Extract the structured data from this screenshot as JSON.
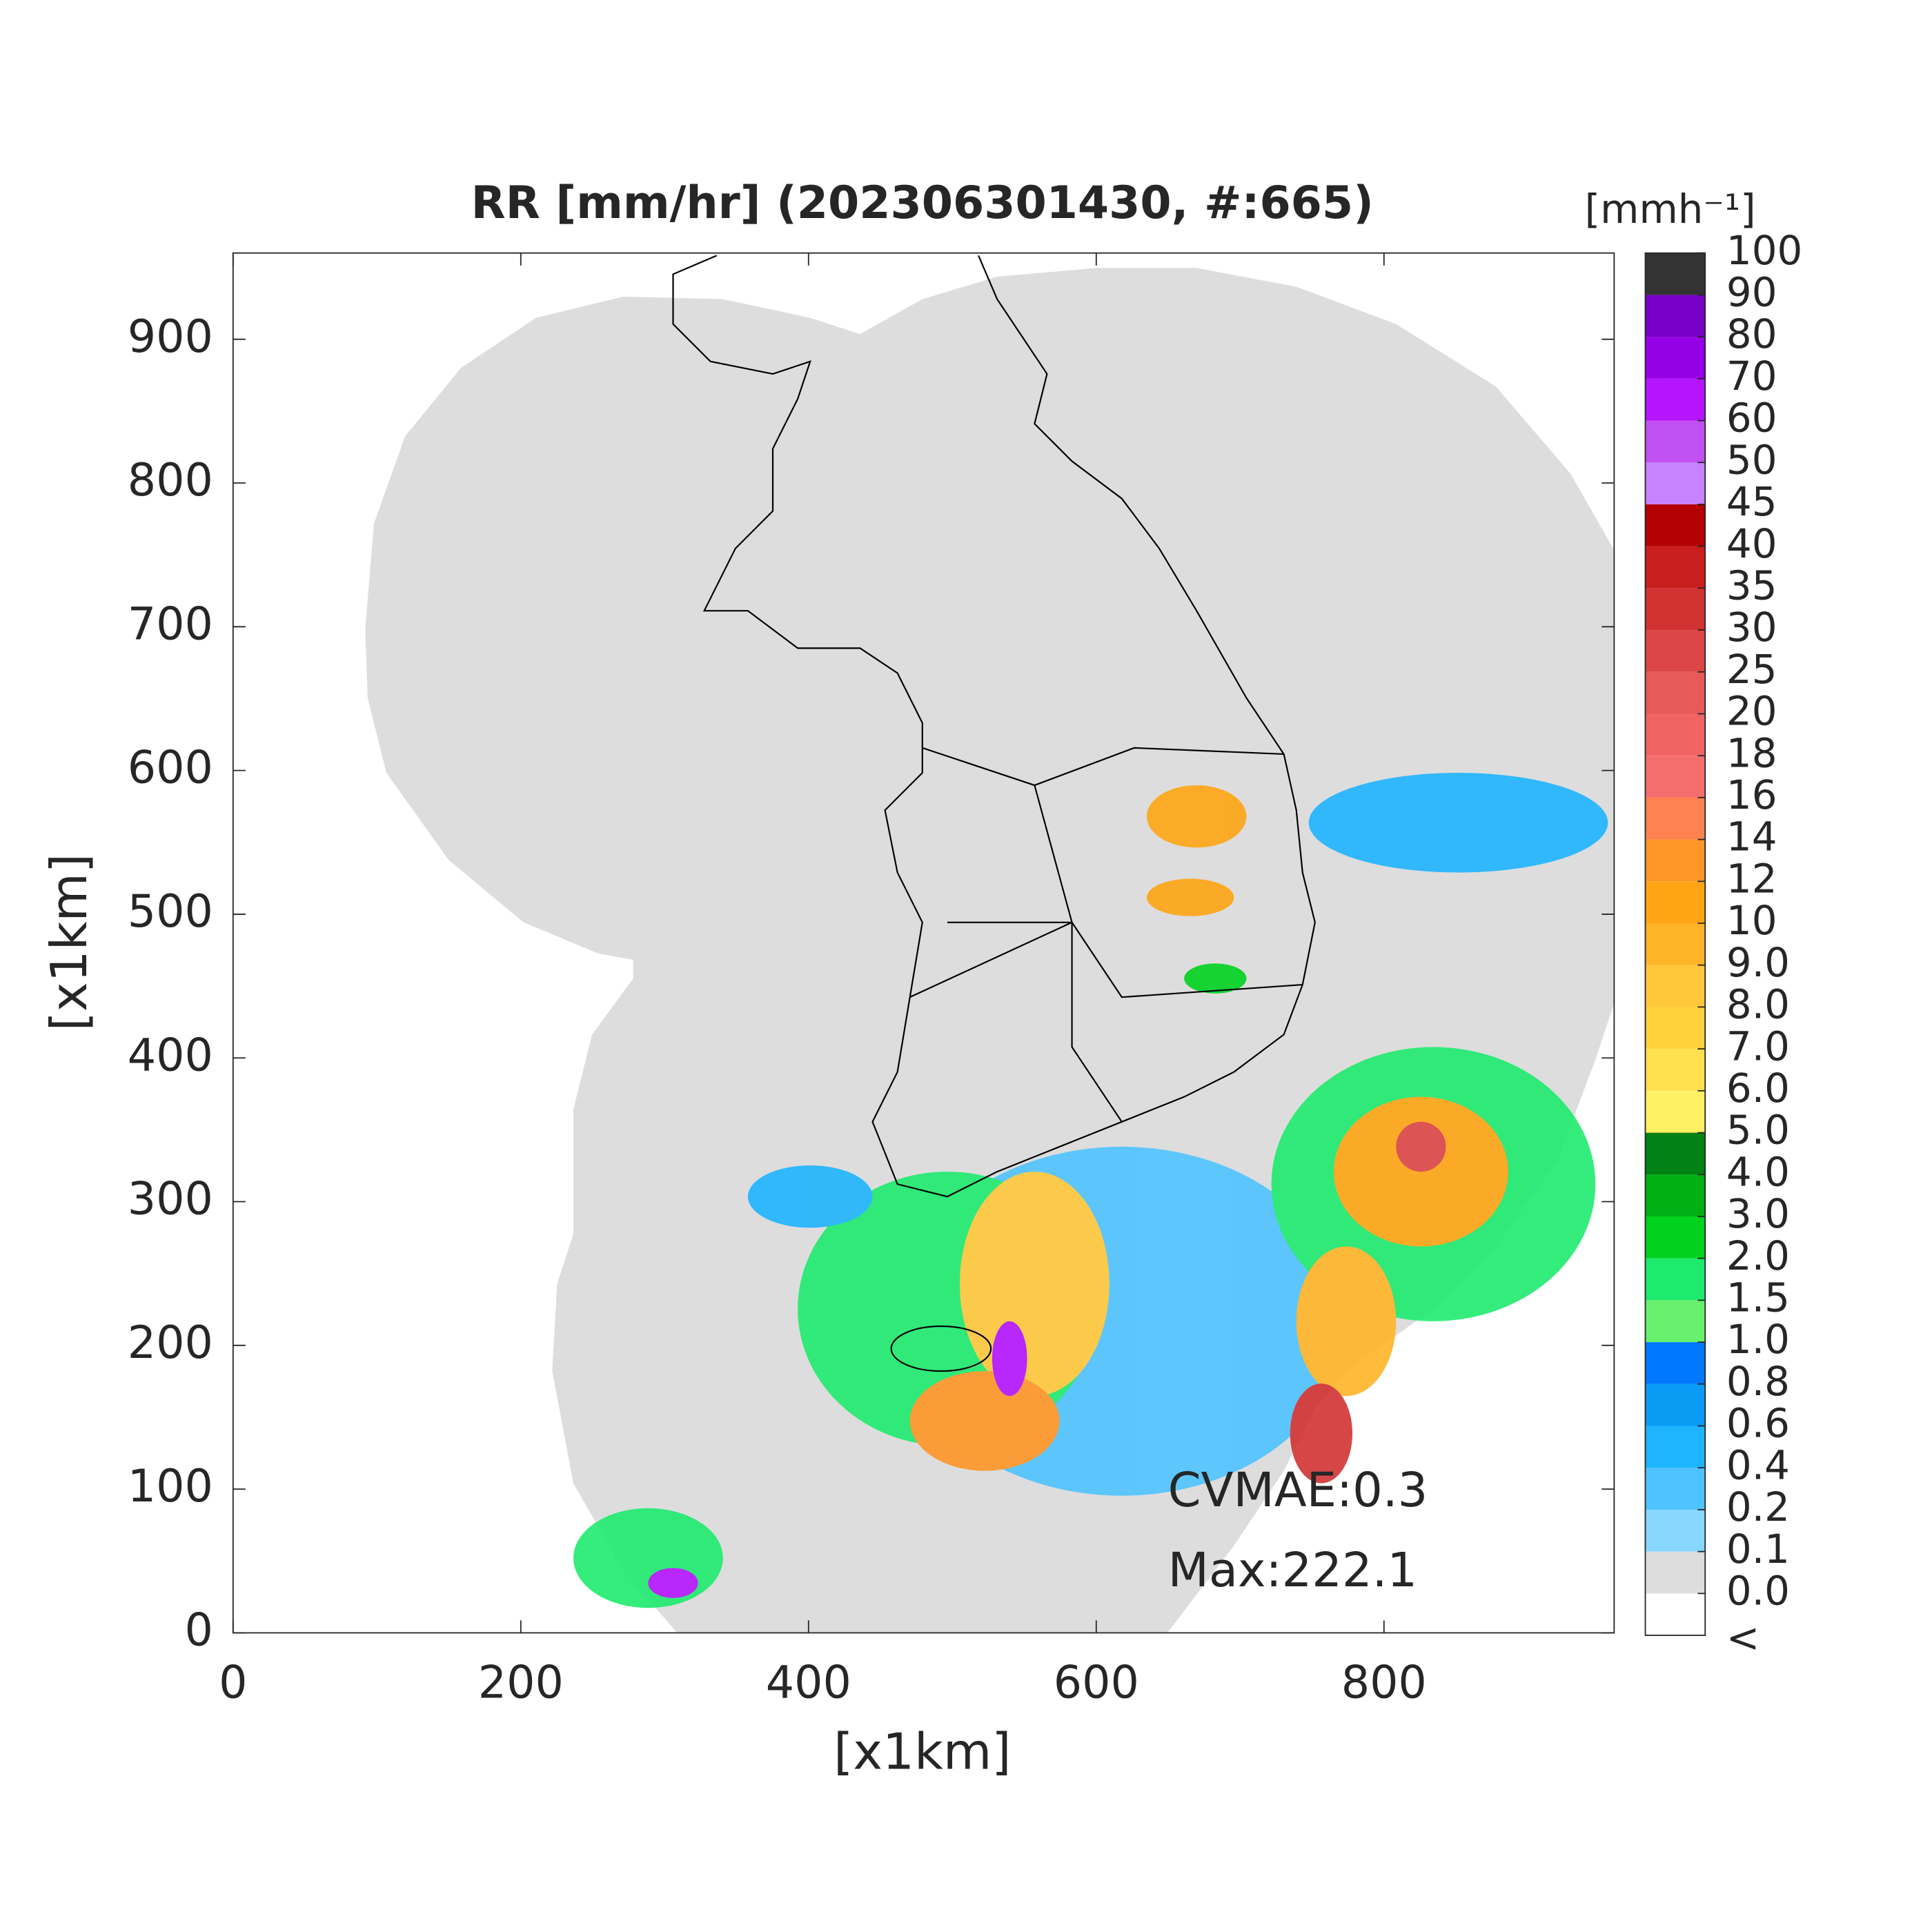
{
  "chart_data": {
    "type": "radar-map",
    "title": "RR [mm/hr] (202306301430, #:665)",
    "x_label": "[x1km]",
    "y_label": "[x1km]",
    "xlim": [
      0,
      960
    ],
    "ylim": [
      0,
      960
    ],
    "xticks": [
      0,
      200,
      400,
      600,
      800
    ],
    "yticks": [
      0,
      100,
      200,
      300,
      400,
      500,
      600,
      700,
      800,
      900
    ],
    "annotations": [
      "CVMAE:0.3",
      "Max:222.1"
    ],
    "colorbar": {
      "label": "[mmh⁻¹]",
      "under_label": "<",
      "levels": [
        {
          "value": 0,
          "label": "0.0"
        },
        0.1,
        0.2,
        0.4,
        0.6,
        0.8,
        {
          "value": 1,
          "label": "1.0"
        },
        1.5,
        {
          "value": 2,
          "label": "2.0"
        },
        {
          "value": 3,
          "label": "3.0"
        },
        {
          "value": 4,
          "label": "4.0"
        },
        {
          "value": 5,
          "label": "5.0"
        },
        {
          "value": 6,
          "label": "6.0"
        },
        {
          "value": 7,
          "label": "7.0"
        },
        {
          "value": 8,
          "label": "8.0"
        },
        {
          "value": 9,
          "label": "9.0"
        },
        10,
        12,
        14,
        16,
        18,
        20,
        25,
        30,
        35,
        40,
        45,
        50,
        60,
        70,
        80,
        90,
        100
      ],
      "colors": [
        "#ffffff",
        "#dddddd",
        "#87d7ff",
        "#4fc3ff",
        "#1eb4ff",
        "#0a9bf5",
        "#0078ff",
        "#69f06e",
        "#1eeb6e",
        "#00d21e",
        "#00af14",
        "#008214",
        "#fff064",
        "#ffe150",
        "#ffd23c",
        "#ffc83c",
        "#ffb428",
        "#ffa514",
        "#ff9628",
        "#ff8250",
        "#f56e6e",
        "#f06464",
        "#e65a5a",
        "#dc4646",
        "#d23232",
        "#c81e1e",
        "#b40000",
        "#c882ff",
        "#c050f0",
        "#b414ff",
        "#9600e6",
        "#7800c8",
        "#333333"
      ]
    }
  }
}
